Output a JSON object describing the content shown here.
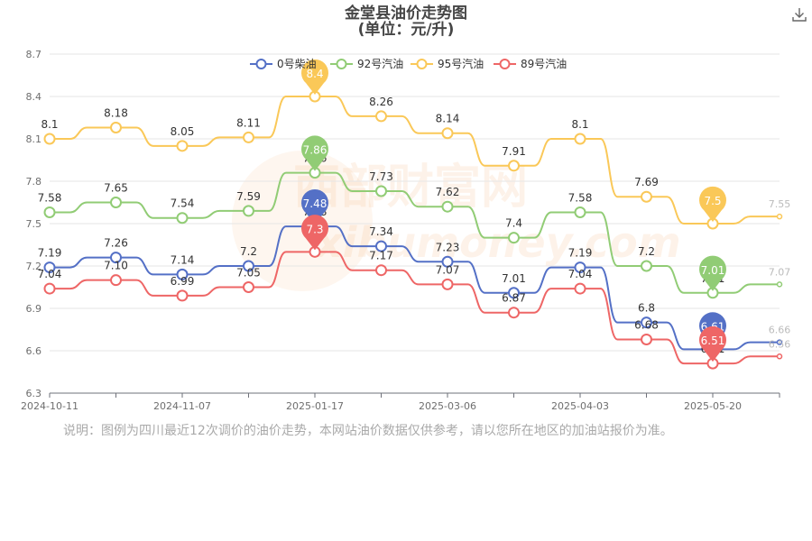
{
  "title_line1": "金堂县油价走势图",
  "title_line2": "(单位：元/升)",
  "note": "说明：图例为四川最近12次调价的油价走势，本网站油价数据仅供参考，请以您所在地区的加油站报价为准。",
  "watermark": {
    "text1": "西部财富网",
    "text2": "xibumoney.com"
  },
  "chart_data": {
    "type": "line",
    "ylim": [
      6.3,
      8.7
    ],
    "yticks": [
      "6.3",
      "6.6",
      "6.9",
      "7.2",
      "7.5",
      "7.8",
      "8.1",
      "8.4",
      "8.7"
    ],
    "ytick_values": [
      6.3,
      6.6,
      6.9,
      7.2,
      7.5,
      7.8,
      8.1,
      8.4,
      8.7
    ],
    "xtick_labels": [
      {
        "index": 0,
        "text": "2024-10-11"
      },
      {
        "index": 2,
        "text": "2024-11-07"
      },
      {
        "index": 4,
        "text": "2025-01-17"
      },
      {
        "index": 6,
        "text": "2025-03-06"
      },
      {
        "index": 8,
        "text": "2025-04-03"
      },
      {
        "index": 10,
        "text": "2025-05-20"
      }
    ],
    "series": [
      {
        "name": "0号柴油",
        "color": "#5470c6",
        "values": [
          7.19,
          7.26,
          7.14,
          7.2,
          7.48,
          7.34,
          7.23,
          7.01,
          7.19,
          6.8,
          6.61
        ],
        "labels": [
          "7.19",
          "7.26",
          "7.14",
          "7.2",
          "7.48",
          "7.34",
          "7.23",
          "7.01",
          "7.19",
          "6.8",
          "6.61"
        ],
        "pins": [
          4,
          10
        ],
        "latest": 6.66,
        "latest_label": "6.66"
      },
      {
        "name": "92号汽油",
        "color": "#91cc75",
        "values": [
          7.58,
          7.65,
          7.54,
          7.59,
          7.86,
          7.73,
          7.62,
          7.4,
          7.58,
          7.2,
          7.01
        ],
        "labels": [
          "7.58",
          "7.65",
          "7.54",
          "7.59",
          "7.86",
          "7.73",
          "7.62",
          "7.4",
          "7.58",
          "7.2",
          "7.01"
        ],
        "pins": [
          4,
          10
        ],
        "latest": 7.07,
        "latest_label": "7.07"
      },
      {
        "name": "95号汽油",
        "color": "#fac858",
        "values": [
          8.1,
          8.18,
          8.05,
          8.11,
          8.4,
          8.26,
          8.14,
          7.91,
          8.1,
          7.69,
          7.5
        ],
        "labels": [
          "8.1",
          "8.18",
          "8.05",
          "8.11",
          "8.4",
          "8.26",
          "8.14",
          "7.91",
          "8.1",
          "7.69",
          "7.5"
        ],
        "pins": [
          4,
          10
        ],
        "latest": 7.55,
        "latest_label": "7.55"
      },
      {
        "name": "89号汽油",
        "color": "#ee6666",
        "values": [
          7.04,
          7.1,
          6.99,
          7.05,
          7.3,
          7.17,
          7.07,
          6.87,
          7.04,
          6.68,
          6.51
        ],
        "labels": [
          "7.04",
          "7.10",
          "6.99",
          "7.05",
          "7.3",
          "7.17",
          "7.07",
          "6.87",
          "7.04",
          "6.68",
          "6.51"
        ],
        "pins": [
          4,
          10
        ],
        "latest": 6.56,
        "latest_label": "6.56"
      }
    ]
  }
}
